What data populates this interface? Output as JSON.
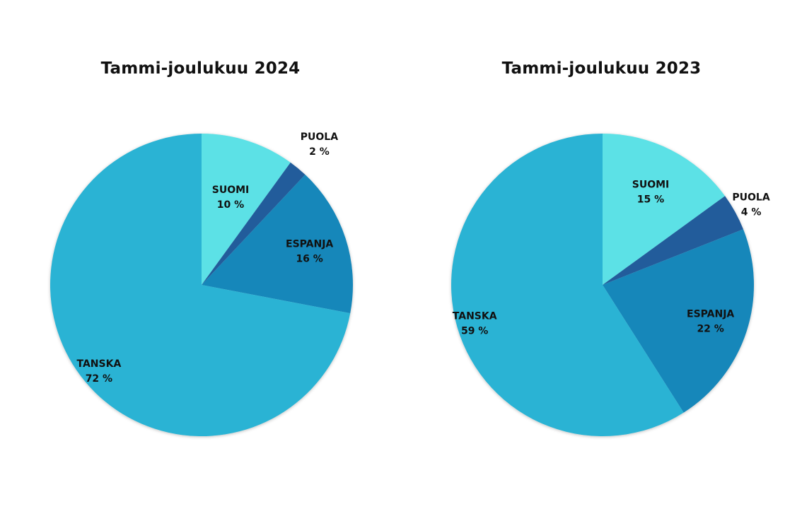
{
  "chart_data": [
    {
      "type": "pie",
      "title": "Tammi-joulukuu 2024",
      "slices": [
        {
          "label": "SUOMI",
          "value": 10,
          "value_label": "10 %",
          "color": "#5ce1e6"
        },
        {
          "label": "PUOLA",
          "value": 2,
          "value_label": "2 %",
          "color": "#245b9b"
        },
        {
          "label": "ESPANJA",
          "value": 16,
          "value_label": "16 %",
          "color": "#1787ba"
        },
        {
          "label": "TANSKA",
          "value": 72,
          "value_label": "72 %",
          "color": "#2ab3d4"
        }
      ]
    },
    {
      "type": "pie",
      "title": "Tammi-joulukuu 2023",
      "slices": [
        {
          "label": "SUOMI",
          "value": 15,
          "value_label": "15 %",
          "color": "#5ce1e6"
        },
        {
          "label": "PUOLA",
          "value": 4,
          "value_label": "4 %",
          "color": "#245b9b"
        },
        {
          "label": "ESPANJA",
          "value": 22,
          "value_label": "22 %",
          "color": "#1787ba"
        },
        {
          "label": "TANSKA",
          "value": 59,
          "value_label": "59 %",
          "color": "#2ab3d4"
        }
      ]
    }
  ]
}
